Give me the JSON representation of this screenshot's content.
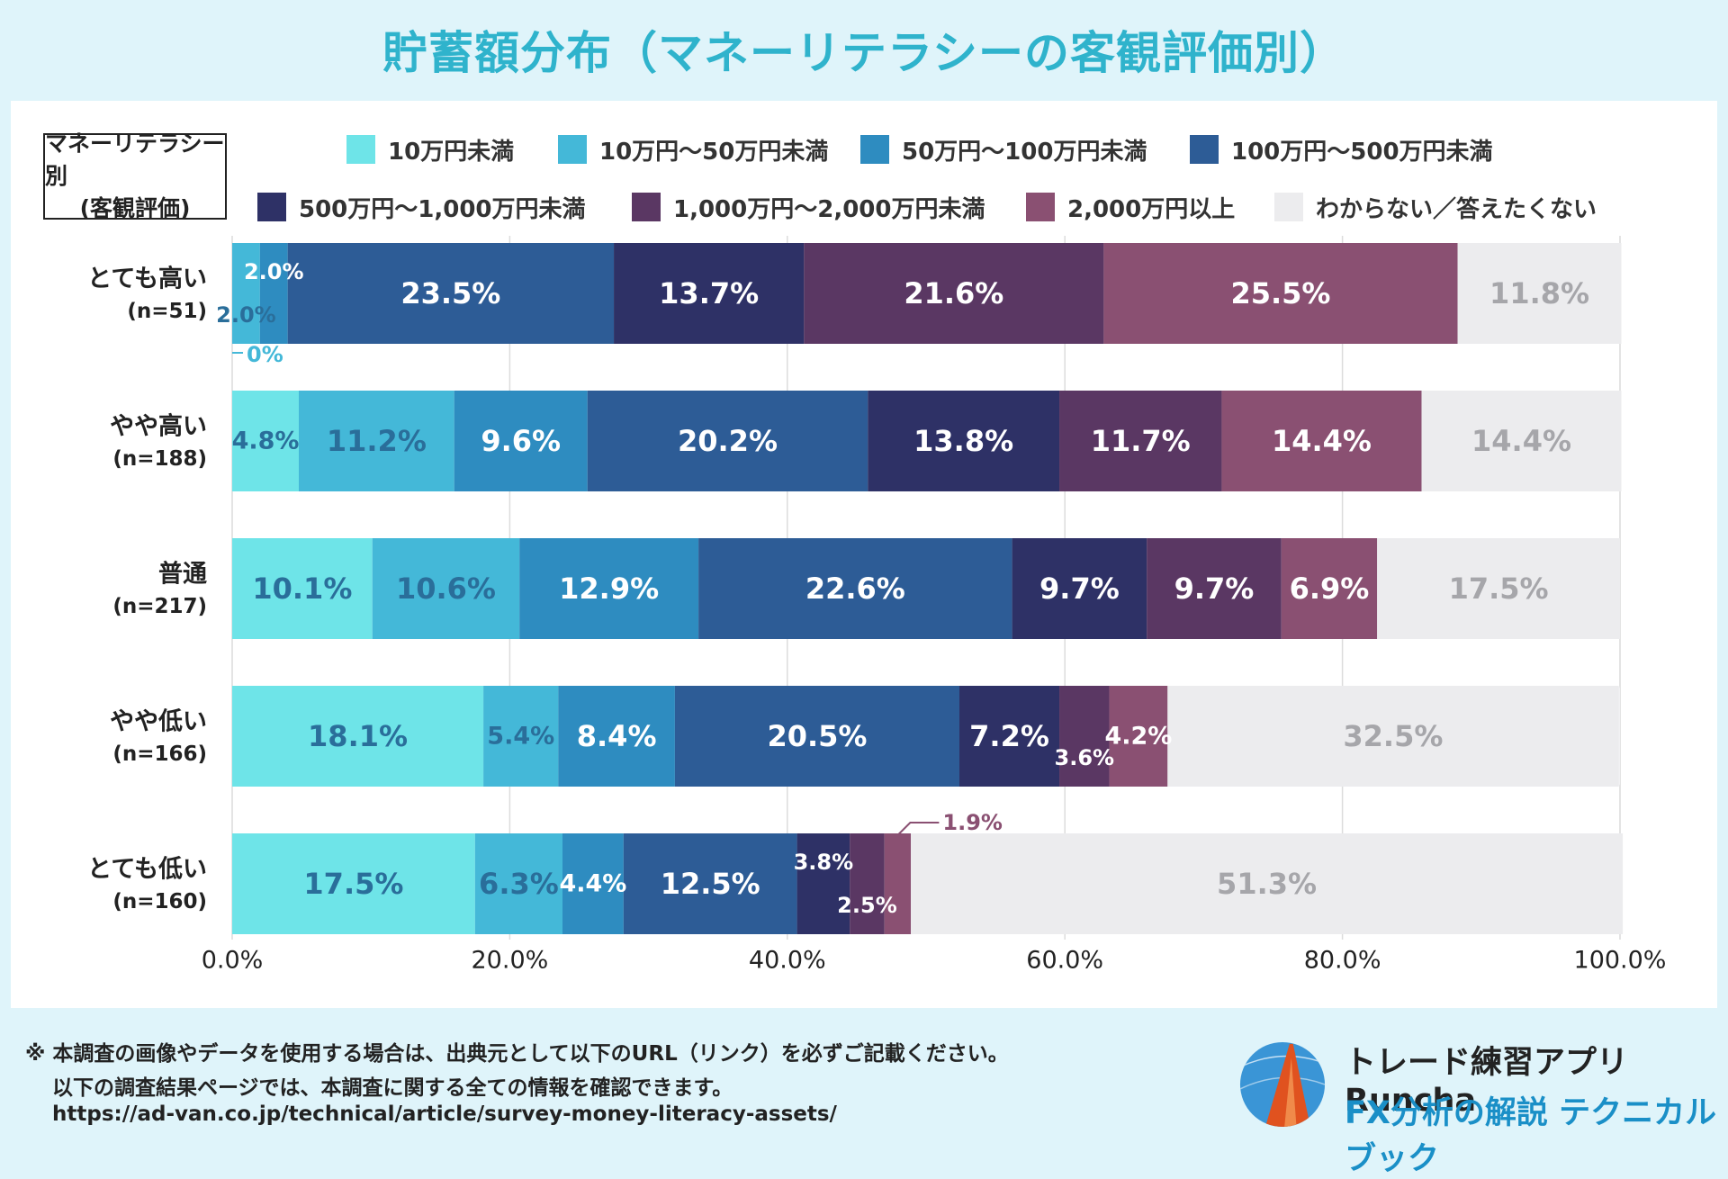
{
  "title": "貯蓄額分布（マネーリテラシーの客観評価別）",
  "category_label": [
    "マネーリテラシー別",
    "(客観評価)"
  ],
  "chart_data": {
    "type": "bar",
    "orientation": "horizontal",
    "stacked": true,
    "title": "貯蓄額分布（マネーリテラシーの客観評価別）",
    "categories": [
      "とても高い",
      "やや高い",
      "普通",
      "やや低い",
      "とても低い"
    ],
    "category_counts": [
      "(n=51)",
      "(n=188)",
      "(n=217)",
      "(n=166)",
      "(n=160)"
    ],
    "series": [
      {
        "name": "10万円未満",
        "values": [
          0,
          4.8,
          10.1,
          18.1,
          17.5
        ],
        "labels": [
          "0%",
          "4.8%",
          "10.1%",
          "18.1%",
          "17.5%"
        ]
      },
      {
        "name": "10万円～50万円未満",
        "values": [
          2.0,
          11.2,
          10.6,
          5.4,
          6.3
        ],
        "labels": [
          "2.0%",
          "11.2%",
          "10.6%",
          "5.4%",
          "6.3%"
        ]
      },
      {
        "name": "50万円～100万円未満",
        "values": [
          2.0,
          9.6,
          12.9,
          8.4,
          4.4
        ],
        "labels": [
          "2.0%",
          "9.6%",
          "12.9%",
          "8.4%",
          "4.4%"
        ]
      },
      {
        "name": "100万円～500万円未満",
        "values": [
          23.5,
          20.2,
          22.6,
          20.5,
          12.5
        ],
        "labels": [
          "23.5%",
          "20.2%",
          "22.6%",
          "20.5%",
          "12.5%"
        ]
      },
      {
        "name": "500万円～1,000万円未満",
        "values": [
          13.7,
          13.8,
          9.7,
          7.2,
          3.8
        ],
        "labels": [
          "13.7%",
          "13.8%",
          "9.7%",
          "7.2%",
          "3.8%"
        ]
      },
      {
        "name": "1,000万円～2,000万円未満",
        "values": [
          21.6,
          11.7,
          9.7,
          3.6,
          2.5
        ],
        "labels": [
          "21.6%",
          "11.7%",
          "9.7%",
          "3.6%",
          "2.5%"
        ]
      },
      {
        "name": "2,000万円以上",
        "values": [
          25.5,
          14.4,
          6.9,
          4.2,
          1.9
        ],
        "labels": [
          "25.5%",
          "14.4%",
          "6.9%",
          "4.2%",
          "1.9%"
        ]
      },
      {
        "name": "わからない／答えたくない",
        "values": [
          11.8,
          14.4,
          17.5,
          32.5,
          51.3
        ],
        "labels": [
          "11.8%",
          "14.4%",
          "17.5%",
          "32.5%",
          "51.3%"
        ]
      }
    ],
    "colors": [
      "#6ee4e8",
      "#44b8d8",
      "#2e8cc0",
      "#2d5c96",
      "#2e3166",
      "#5a3763",
      "#8a5072",
      "#ececee"
    ],
    "label_colors": [
      "#2a6e9a",
      "#2a6e9a",
      "#ffffff",
      "#ffffff",
      "#ffffff",
      "#ffffff",
      "#ffffff",
      "#a6a6aa"
    ],
    "x_ticks": [
      "0.0%",
      "20.0%",
      "40.0%",
      "60.0%",
      "80.0%",
      "100.0%"
    ],
    "xlim": [
      0,
      100
    ],
    "grid": true,
    "legend_position": "top"
  },
  "footer": {
    "note_line1": "※ 本調査の画像やデータを使用する場合は、出典元として以下のURL（リンク）を必ずご記載ください。",
    "note_line2": "以下の調査結果ページでは、本調査に関する全ての情報を確認できます。",
    "url": "https://ad-van.co.jp/technical/article/survey-money-literacy-assets/"
  },
  "brand": {
    "name": "トレード練習アプリ  Runcha",
    "subtitle": "FX分析の解説  テクニカルブック",
    "logo_icon": "runcha-logo-icon"
  }
}
